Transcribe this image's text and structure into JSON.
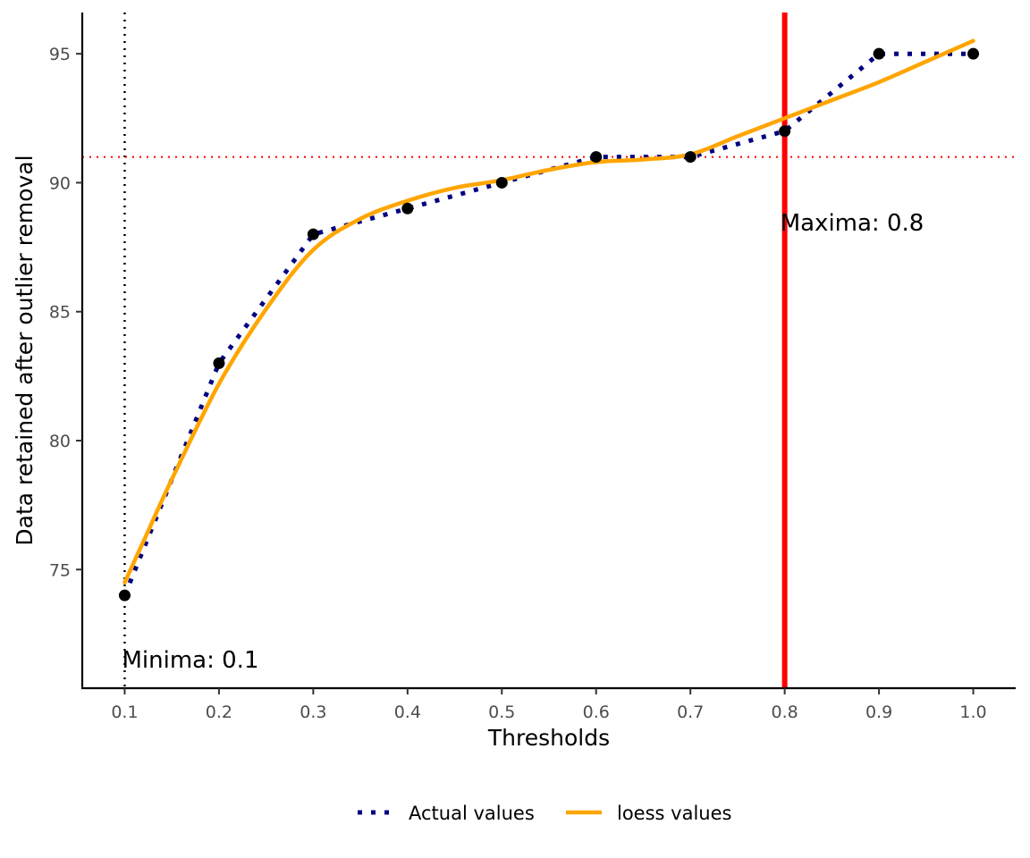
{
  "chart_data": {
    "type": "line",
    "xlabel": "Thresholds",
    "ylabel": "Data retained after outlier removal",
    "xlim": [
      0.055,
      1.045
    ],
    "ylim": [
      70.4,
      96.6
    ],
    "x_ticks": [
      "0.1",
      "0.2",
      "0.3",
      "0.4",
      "0.5",
      "0.6",
      "0.7",
      "0.8",
      "0.9",
      "1.0"
    ],
    "y_ticks": [
      "75",
      "80",
      "85",
      "90",
      "95"
    ],
    "grid": false,
    "legend_position": "bottom",
    "series": [
      {
        "name": "Actual values",
        "style": "dotted",
        "color": "#000080",
        "point_color": "#000000",
        "x": [
          0.1,
          0.2,
          0.3,
          0.4,
          0.5,
          0.6,
          0.7,
          0.8,
          0.9,
          1.0
        ],
        "y": [
          74,
          83,
          88,
          89,
          90,
          91,
          91,
          92,
          95,
          95
        ]
      },
      {
        "name": "loess values",
        "style": "solid",
        "color": "#FFA500",
        "x": [
          0.1,
          0.125,
          0.15,
          0.2,
          0.25,
          0.3,
          0.35,
          0.4,
          0.45,
          0.5,
          0.55,
          0.6,
          0.65,
          0.7,
          0.75,
          0.8,
          0.85,
          0.9,
          0.95,
          1.0
        ],
        "y": [
          74.5,
          76.5,
          78.5,
          82.2,
          85.1,
          87.4,
          88.6,
          89.3,
          89.8,
          90.1,
          90.5,
          90.8,
          90.9,
          91.1,
          91.8,
          92.5,
          93.2,
          93.9,
          94.7,
          95.5
        ]
      }
    ],
    "reference_lines": {
      "minima_x": 0.1,
      "minima_color": "#000000",
      "maxima_x": 0.8,
      "maxima_color": "#FF0000",
      "horizontal_y": 91,
      "horizontal_color": "#FF0000"
    },
    "annotations": {
      "minima": "Minima: 0.1",
      "maxima": "Maxima: 0.8"
    }
  }
}
